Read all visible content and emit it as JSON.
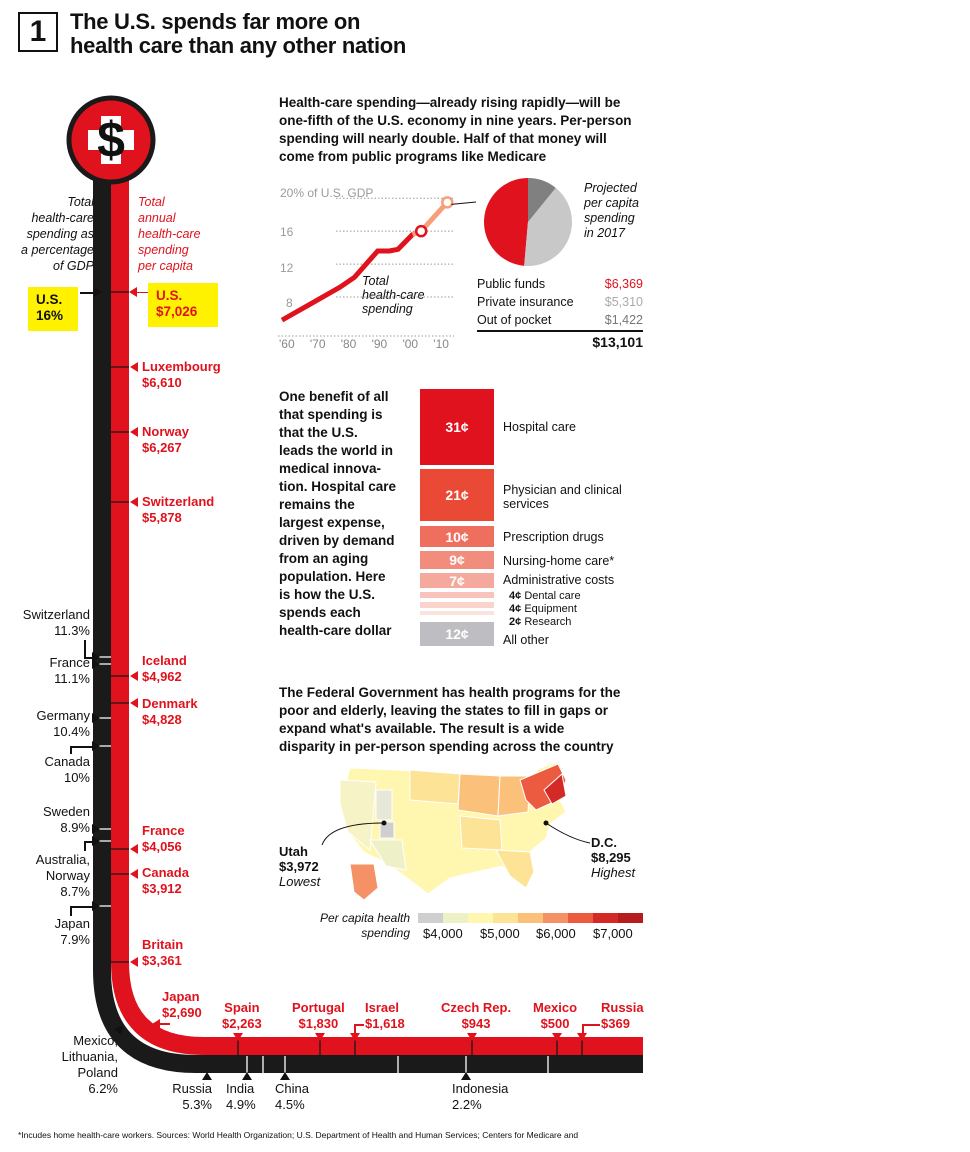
{
  "header": {
    "number": "1",
    "headline_line1": "The U.S. spends far more on",
    "headline_line2": "health care than any other nation"
  },
  "pillar": {
    "dollar_glyph": "$",
    "gdp_caption": [
      "Total",
      "health-care",
      "spending as",
      "a percentage",
      "of GDP"
    ],
    "capita_caption": [
      "Total",
      "annual",
      "health-care",
      "spending",
      "per capita"
    ],
    "us_gdp_name": "U.S.",
    "us_gdp_value": "16%",
    "us_capita_name": "U.S.",
    "us_capita_value": "$7,026",
    "highlight_color": "#fff200"
  },
  "per_capita_vertical": [
    {
      "name": "Luxembourg",
      "value": "$6,610"
    },
    {
      "name": "Norway",
      "value": "$6,267"
    },
    {
      "name": "Switzerland",
      "value": "$5,878"
    },
    {
      "name": "Iceland",
      "value": "$4,962"
    },
    {
      "name": "Denmark",
      "value": "$4,828"
    },
    {
      "name": "France",
      "value": "$4,056"
    },
    {
      "name": "Canada",
      "value": "$3,912"
    },
    {
      "name": "Britain",
      "value": "$3,361"
    }
  ],
  "per_capita_horizontal": [
    {
      "name": "Japan",
      "value": "$2,690"
    },
    {
      "name": "Spain",
      "value": "$2,263"
    },
    {
      "name": "Portugal",
      "value": "$1,830"
    },
    {
      "name": "Israel",
      "value": "$1,618"
    },
    {
      "name": "Czech Rep.",
      "value": "$943"
    },
    {
      "name": "Mexico",
      "value": "$500"
    },
    {
      "name": "Russia",
      "value": "$369"
    }
  ],
  "gdp_vertical": [
    {
      "name": "Switzerland",
      "value": "11.3%"
    },
    {
      "name": "France",
      "value": "11.1%"
    },
    {
      "name": "Germany",
      "value": "10.4%"
    },
    {
      "name": "Canada",
      "value": "10%"
    },
    {
      "name": "Sweden",
      "value": "8.9%"
    },
    {
      "name": "Australia,",
      "name2": "Norway",
      "value": "8.7%"
    },
    {
      "name": "Japan",
      "value": "7.9%"
    },
    {
      "name": "Mexico,",
      "name2": "Lithuania,",
      "name3": "Poland",
      "value": "6.2%"
    }
  ],
  "gdp_horizontal": [
    {
      "name": "Russia",
      "value": "5.3%"
    },
    {
      "name": "India",
      "value": "4.9%"
    },
    {
      "name": "China",
      "value": "4.5%"
    },
    {
      "name": "Indonesia",
      "value": "2.2%"
    }
  ],
  "section_gdp": {
    "intro": [
      "Health-care spending—already rising rapidly—will be",
      "one-fifth of the U.S. economy in nine years. Per-person",
      "spending will nearly double. Half of that money will",
      "come from public programs like Medicare"
    ],
    "line_label": [
      "Total",
      "health-care",
      "spending"
    ],
    "y_ticks": [
      "20% of U.S. GDP",
      "16",
      "12",
      "8"
    ],
    "x_ticks": [
      "'60",
      "'70",
      "'80",
      "'90",
      "'00",
      "'10"
    ]
  },
  "section_projection": {
    "caption": [
      "Projected",
      "per capita",
      "spending",
      "in 2017"
    ],
    "rows": [
      {
        "label": "Public funds",
        "value": "$6,369"
      },
      {
        "label": "Private insurance",
        "value": "$5,310"
      },
      {
        "label": "Out of pocket",
        "value": "$1,422"
      }
    ],
    "total": "$13,101",
    "colors": {
      "public": "#e0121d",
      "private": "#c8c8c8",
      "pocket": "#808080"
    }
  },
  "section_dollar": {
    "intro": [
      "One benefit of all",
      "that spending is",
      "that the U.S.",
      "leads the world in",
      "medical innova-",
      "tion. Hospital care",
      "remains the",
      "largest expense,",
      "driven by demand",
      "from an aging",
      "population. Here",
      "is how the U.S.",
      "spends each",
      "health-care dollar"
    ],
    "items": [
      {
        "value": "31¢",
        "label": "Hospital care",
        "color": "#e0121d"
      },
      {
        "value": "21¢",
        "label": "Physician and clinical",
        "label2": "services",
        "color": "#ea4a35"
      },
      {
        "value": "10¢",
        "label": "Prescription drugs",
        "color": "#ef6f5e"
      },
      {
        "value": "9¢",
        "label": "Nursing-home care*",
        "color": "#f28c7c"
      },
      {
        "value": "7¢",
        "label": "Administrative costs",
        "color": "#f5a89c"
      },
      {
        "value": "4¢",
        "label": "Dental care",
        "color": "#f8c3ba"
      },
      {
        "value": "4¢",
        "label": "Equipment",
        "color": "#fad3cc"
      },
      {
        "value": "2¢",
        "label": "Research",
        "color": "#fce2dd"
      },
      {
        "value": "12¢",
        "label": "All other",
        "color": "#bdbdc2"
      }
    ]
  },
  "section_map": {
    "intro": [
      "The Federal Government has health programs for the",
      "poor and elderly, leaving the states to fill in gaps or",
      "expand what's available. The result is a wide",
      "disparity in per-person spending across the country"
    ],
    "utah": {
      "name": "Utah",
      "value": "$3,972",
      "note": "Lowest"
    },
    "dc": {
      "name": "D.C.",
      "value": "$8,295",
      "note": "Highest"
    },
    "legend_title": [
      "Per capita health",
      "spending"
    ],
    "legend_ticks": [
      "$4,000",
      "$5,000",
      "$6,000",
      "$7,000"
    ],
    "legend_colors": [
      "#cfcfcf",
      "#eef0c8",
      "#fff6b0",
      "#fde395",
      "#fbc17a",
      "#f59166",
      "#ec5a3f",
      "#d42a27",
      "#b71c1c"
    ]
  },
  "footnote": "*Incudes home health-care workers. Sources: World Health Organization; U.S. Department of Health and Human Services; Centers for Medicare and",
  "chart_data": [
    {
      "type": "line",
      "x": [
        1960,
        1970,
        1980,
        1985,
        1990,
        1993,
        1997,
        2000,
        2005,
        2008,
        2017
      ],
      "values": [
        5.2,
        7.2,
        9.2,
        10.4,
        12.4,
        13.6,
        13.6,
        13.8,
        15.6,
        16.0,
        19.5
      ],
      "ylim": [
        4,
        21
      ],
      "xlim": [
        1960,
        2020
      ]
    },
    {
      "type": "pie",
      "categories": [
        "Public funds",
        "Private insurance",
        "Out of pocket"
      ],
      "values": [
        6369,
        5310,
        1422
      ]
    },
    {
      "type": "bar",
      "categories": [
        "Hospital care",
        "Physician and clinical services",
        "Prescription drugs",
        "Nursing-home care*",
        "Administrative costs",
        "Dental care",
        "Equipment",
        "Research",
        "All other"
      ],
      "values": [
        31,
        21,
        10,
        9,
        7,
        4,
        4,
        2,
        12
      ]
    }
  ]
}
